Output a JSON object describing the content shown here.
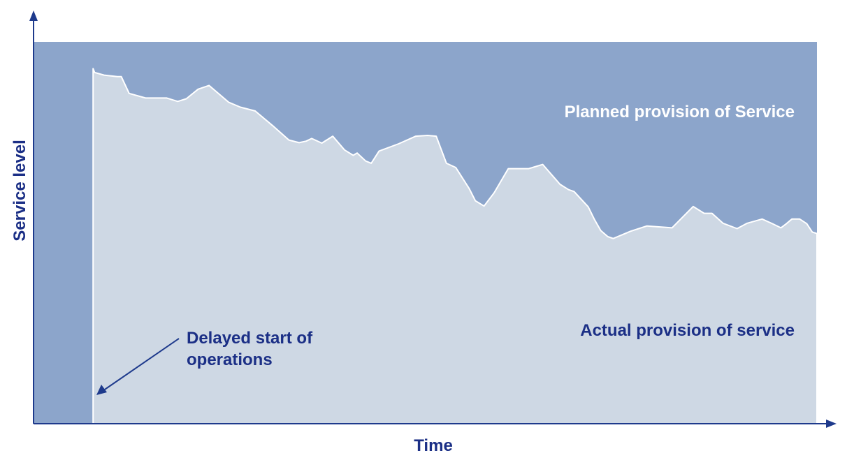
{
  "chart_data": {
    "type": "area",
    "title": "",
    "xlabel": "Time",
    "ylabel": "Service level",
    "xlim": [
      0,
      100
    ],
    "ylim": [
      0,
      100
    ],
    "grid": false,
    "series": [
      {
        "name": "Planned provision of Service",
        "x": [
          0,
          100
        ],
        "values": [
          100,
          100
        ]
      },
      {
        "name": "Actual provision of service",
        "x": [
          7.6,
          7.8,
          9.0,
          10.7,
          11.2,
          12.2,
          14.3,
          15.6,
          17.0,
          18.4,
          19.5,
          21.0,
          22.4,
          24.9,
          26.4,
          28.3,
          30.5,
          32.6,
          33.9,
          34.8,
          35.5,
          36.8,
          38.2,
          39.7,
          40.8,
          41.3,
          42.4,
          43.1,
          44.1,
          46.6,
          48.8,
          50.3,
          51.4,
          52.7,
          53.9,
          55.6,
          56.4,
          57.5,
          58.8,
          60.6,
          63.2,
          65.0,
          67.2,
          68.3,
          69.0,
          70.8,
          71.6,
          72.4,
          73.3,
          74.0,
          76.2,
          78.3,
          81.5,
          84.2,
          85.6,
          86.6,
          88.0,
          89.8,
          91.1,
          93.0,
          94.3,
          95.4,
          96.1,
          96.8,
          97.8,
          98.7,
          99.4,
          100
        ],
        "values": [
          93,
          92,
          91.3,
          90.9,
          90.9,
          86.5,
          85.3,
          85.3,
          85.3,
          84.4,
          85.1,
          87.6,
          88.6,
          84.2,
          82.9,
          81.9,
          78.1,
          74.3,
          73.6,
          74.0,
          74.7,
          73.5,
          75.3,
          71.7,
          70.3,
          70.9,
          68.8,
          68.2,
          71.4,
          73.3,
          75.3,
          75.5,
          75.3,
          68.2,
          67.1,
          61.6,
          58.4,
          57.0,
          60.5,
          66.8,
          66.8,
          67.9,
          62.7,
          61.3,
          60.8,
          56.8,
          53.5,
          50.6,
          49.0,
          48.5,
          50.4,
          51.8,
          51.3,
          56.9,
          55.1,
          55.1,
          52.5,
          51.1,
          52.5,
          53.6,
          52.4,
          51.3,
          52.4,
          53.6,
          53.6,
          52.4,
          50.2,
          49.8
        ]
      }
    ],
    "annotations": [
      {
        "text": "Delayed start of",
        "text2": "operations"
      }
    ],
    "colors": {
      "planned_fill": "#8ca5cb",
      "actual_fill": "#ced8e4",
      "outline": "#ffffff",
      "axis": "#1e3a8c",
      "label": "#1b2f86",
      "planned_label": "#ffffff"
    }
  }
}
